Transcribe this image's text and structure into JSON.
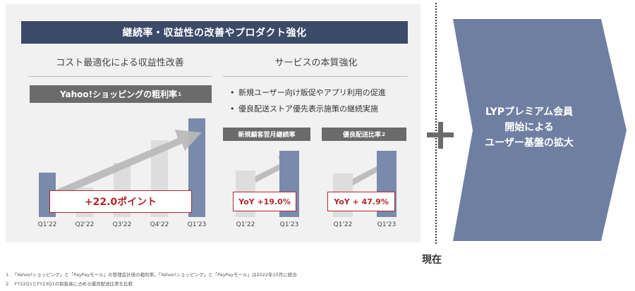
{
  "banner_title": "継続率・収益性の改善やプロダクト強化",
  "left_section": {
    "heading": "コスト最適化による収益性改善",
    "label": "Yahoo!ショッピングの粗利率",
    "label_note": "1",
    "callout": "+22.0ポイント",
    "chart_data": {
      "type": "bar",
      "categories": [
        "Q1'22",
        "Q2'22",
        "Q3'22",
        "Q4'22",
        "Q1'23"
      ],
      "values": [
        0.45,
        0.3,
        0.55,
        0.78,
        1.0
      ],
      "colors": [
        "#7a8aaa",
        "#dddddd",
        "#dddddd",
        "#dddddd",
        "#7a8aaa"
      ]
    }
  },
  "right_section": {
    "heading": "サービスの本質強化",
    "bullets": [
      "新規ユーザー向け販促やアプリ利用の促進",
      "優良配送ストア優先表示施策の継続実施"
    ],
    "chart1": {
      "label": "新規顧客翌月継続率",
      "callout": "YoY +19.0%",
      "chart_data": {
        "type": "bar",
        "categories": [
          "Q1'22",
          "Q1'23"
        ],
        "values": [
          0.7,
          1.0
        ],
        "colors": [
          "#dddddd",
          "#7a8aaa"
        ]
      }
    },
    "chart2": {
      "label": "優良配送比率",
      "label_note": "2",
      "callout": "YoY + 47.9%",
      "chart_data": {
        "type": "bar",
        "categories": [
          "Q1'22",
          "Q1'23"
        ],
        "values": [
          0.66,
          1.0
        ],
        "colors": [
          "#dddddd",
          "#7a8aaa"
        ]
      }
    }
  },
  "arrow_text": [
    "LYPプレミアム会員",
    "開始による",
    "ユーザー基盤の拡大"
  ],
  "now_label": "現在",
  "footnotes": [
    "1.　「Yahoo!ショッピング」と「PayPayモール」の管理会計値の粗利率。「Yahoo!ショッピング」と「PayPayモール」は2022年10月に統合",
    "2.　FY22Q1とFY23Q1の取扱高に占める優良配送比率を比較"
  ],
  "colors": {
    "banner": "#3b4a68",
    "accent_red": "#b3262d",
    "bar_blue": "#7a8aaa",
    "bar_gray": "#dddddd",
    "arrow_fill": "#6f7fa1"
  }
}
